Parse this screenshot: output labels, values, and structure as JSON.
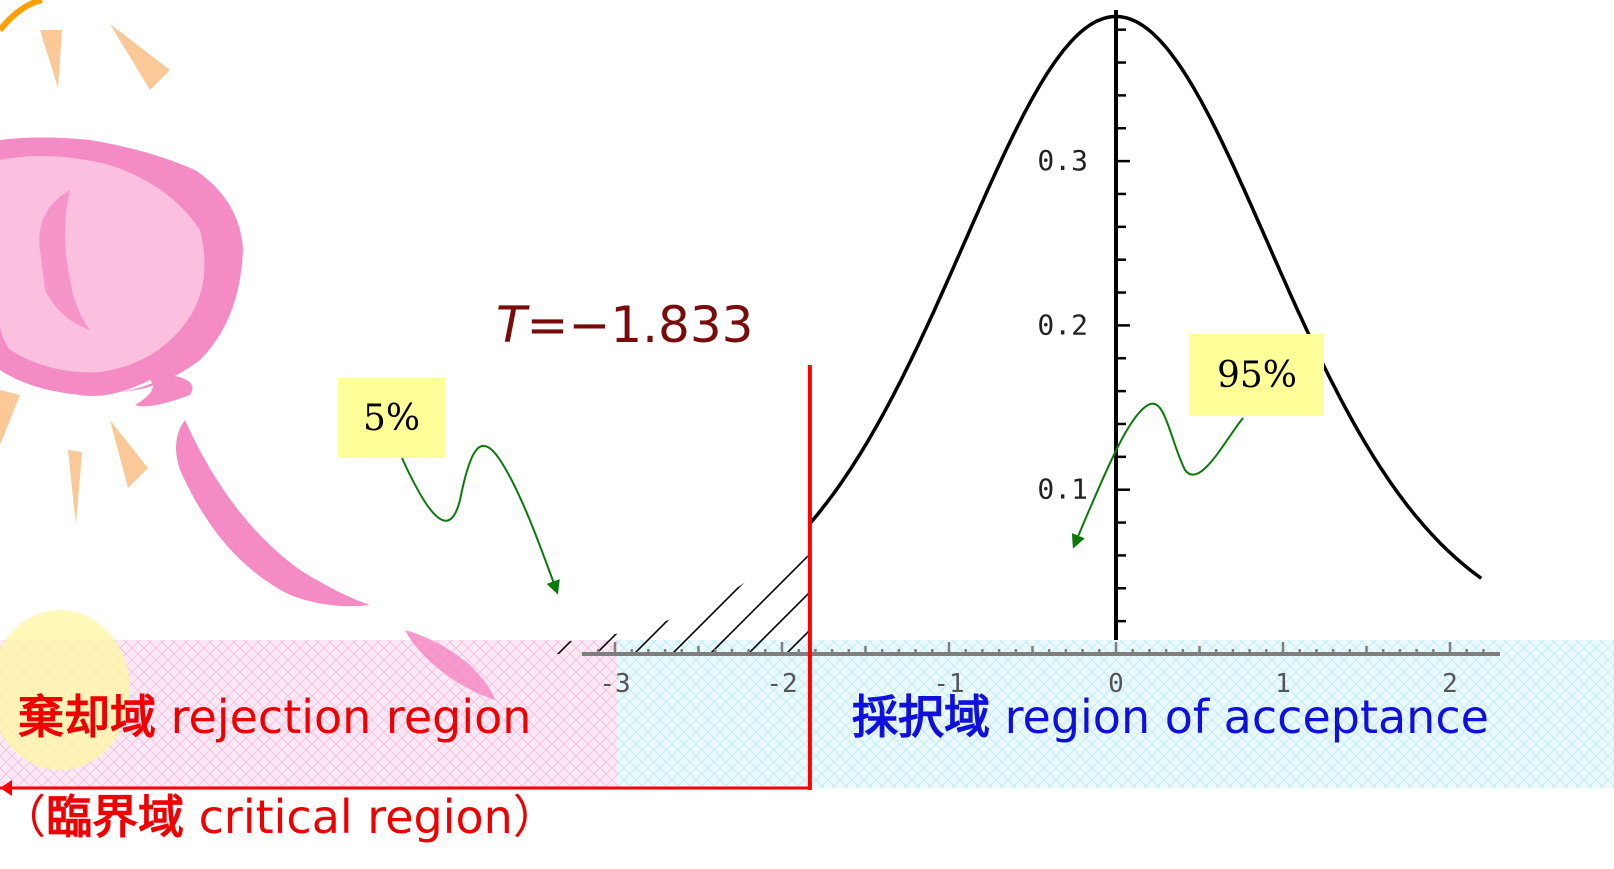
{
  "chart_data": {
    "type": "line",
    "distribution": "Student t density (left-tailed test)",
    "x_axis": {
      "range": [
        -3.05,
        2.2
      ],
      "ticks": [
        -3,
        -2,
        -1,
        0,
        1,
        2
      ]
    },
    "y_axis": {
      "range": [
        0,
        0.4
      ],
      "tick_labels": [
        "0.1",
        "0.2",
        "0.3"
      ],
      "tick_values": [
        0.1,
        0.2,
        0.3
      ]
    },
    "critical_value": -1.833,
    "critical_label": "=−1.833",
    "critical_label_symbol": "T",
    "tail_area_label": "5%",
    "acceptance_area_label": "95%",
    "curve_color": "#000000",
    "critical_line_color": "#ff0000",
    "label_color": "#7a0b0b",
    "callout_arrow_color": "#0a7a0a"
  },
  "regions": {
    "rejection": {
      "label_jp": "棄却域",
      "label_en": "rejection region",
      "color": "#ee0000"
    },
    "acceptance": {
      "label_jp": "採択域",
      "label_en": "region of acceptance",
      "color": "#1010dd"
    },
    "critical": {
      "open_paren": "（",
      "label_jp": "臨界域",
      "label_en": "critical region",
      "close_paren": "）"
    }
  },
  "decoration": {
    "illustration": "sun-with-flower-clipart-icon"
  }
}
